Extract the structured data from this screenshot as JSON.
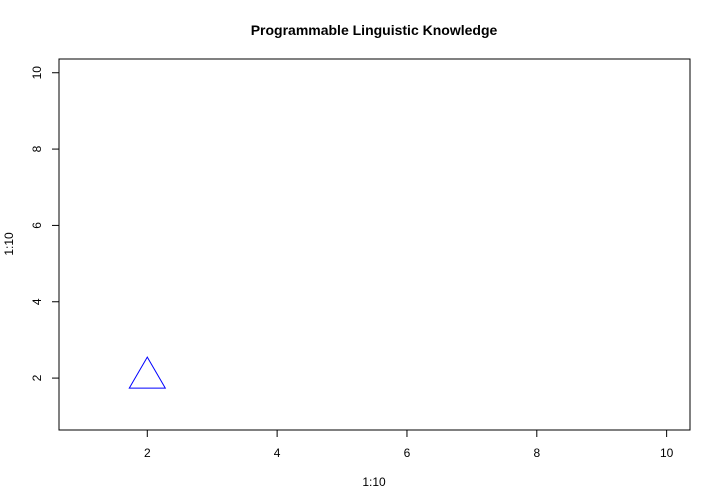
{
  "chart_data": {
    "type": "scatter",
    "title": "Programmable Linguistic Knowledge",
    "xlabel": "1:10",
    "ylabel": "1:10",
    "xlim": [
      0.64,
      10.36
    ],
    "ylim": [
      0.64,
      10.36
    ],
    "x_ticks": [
      2,
      4,
      6,
      8,
      10
    ],
    "y_ticks": [
      2,
      4,
      6,
      8,
      10
    ],
    "grid": false,
    "series": [
      {
        "x": [
          2
        ],
        "y": [
          2
        ],
        "marker": "triangle-open",
        "color": "#0000ff"
      }
    ]
  }
}
